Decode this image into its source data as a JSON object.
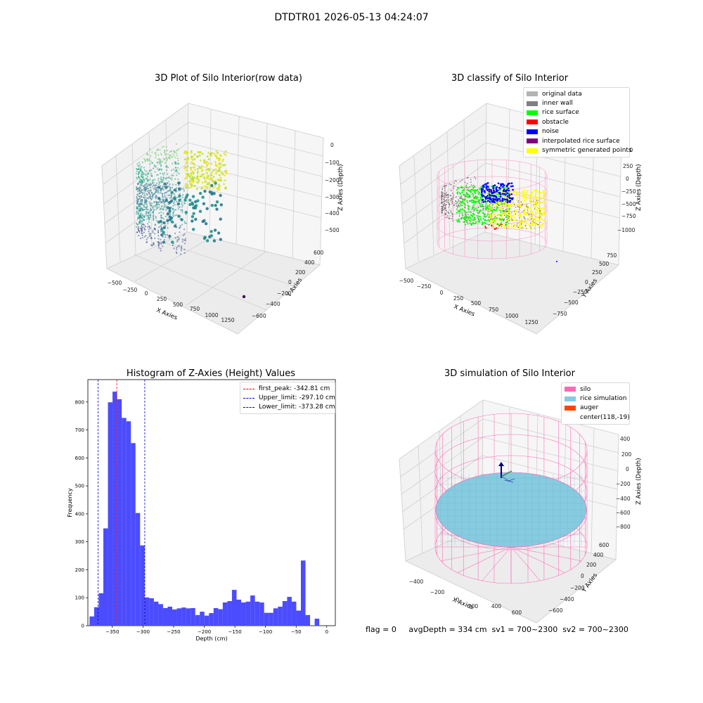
{
  "suptitle": "DTDTR01 2026-05-13 04:24:07",
  "footer": "flag = 0     avgDepth = 334 cm  sv1 = 700~2300  sv2 = 700~2300",
  "colors": {
    "hist_bar": "#4c4cff",
    "peak_line": "#ff0000",
    "limit_line": "#0000cc",
    "silo_wire": "#ff69b4",
    "rice_sim": "#87cbe0"
  },
  "chart_data": [
    {
      "type": "scatter",
      "title": "3D Plot of Silo Interior(row data)",
      "xlabel": "X Axies",
      "ylabel": "Y Axies",
      "zlabel": "Z Axies (Depth)",
      "x_ticks": [
        "−500",
        "−250",
        "0",
        "250",
        "500",
        "750",
        "1000",
        "1250"
      ],
      "y_ticks": [
        "−600",
        "−400",
        "−200",
        "0",
        "200",
        "400",
        "600"
      ],
      "z_ticks": [
        "−500",
        "−400",
        "−300",
        "−200",
        "−100",
        "0"
      ],
      "colormap": "viridis"
    },
    {
      "type": "scatter",
      "title": "3D classify of Silo Interior",
      "xlabel": "X Axies",
      "ylabel": "Y Axies",
      "zlabel": "Z Axies (Depth)",
      "x_ticks": [
        "−500",
        "−250",
        "0",
        "250",
        "500",
        "750",
        "1000",
        "1250"
      ],
      "y_ticks": [
        "−750",
        "−500",
        "−250",
        "0",
        "250",
        "500",
        "750"
      ],
      "z_ticks": [
        "−1000",
        "−750",
        "−500",
        "−250",
        "0",
        "250",
        "500"
      ],
      "legend": [
        {
          "label": "original data",
          "color": "#b3b3b3"
        },
        {
          "label": "inner wall",
          "color": "#808080"
        },
        {
          "label": "rice surface",
          "color": "#00ff00"
        },
        {
          "label": "obstacle",
          "color": "#ff0000"
        },
        {
          "label": "noise",
          "color": "#0000ff"
        },
        {
          "label": "interpolated rice surface",
          "color": "#800080"
        },
        {
          "label": "symmetric generated points",
          "color": "#ffff00"
        }
      ]
    },
    {
      "type": "bar",
      "title": "Histogram of Z-Axies (Height) Values",
      "xlabel": "Depth (cm)",
      "ylabel": "Frequency",
      "xlim": [
        -390,
        14
      ],
      "ylim": [
        0,
        880
      ],
      "x_ticks": [
        "−350",
        "−300",
        "−250",
        "−200",
        "−150",
        "−100",
        "−50",
        "0"
      ],
      "y_ticks": [
        "0",
        "100",
        "200",
        "300",
        "400",
        "500",
        "600",
        "700",
        "800"
      ],
      "bin_width": 7.5,
      "bins": [
        {
          "x": -383.5,
          "y": 33
        },
        {
          "x": -376.0,
          "y": 66
        },
        {
          "x": -368.5,
          "y": 116
        },
        {
          "x": -361.0,
          "y": 348
        },
        {
          "x": -353.5,
          "y": 799
        },
        {
          "x": -346.0,
          "y": 837
        },
        {
          "x": -338.5,
          "y": 810
        },
        {
          "x": -331.0,
          "y": 743
        },
        {
          "x": -323.5,
          "y": 731
        },
        {
          "x": -316.0,
          "y": 653
        },
        {
          "x": -308.5,
          "y": 403
        },
        {
          "x": -301.0,
          "y": 287
        },
        {
          "x": -293.5,
          "y": 101
        },
        {
          "x": -286.0,
          "y": 98
        },
        {
          "x": -278.5,
          "y": 86
        },
        {
          "x": -271.0,
          "y": 77
        },
        {
          "x": -263.5,
          "y": 63
        },
        {
          "x": -256.0,
          "y": 68
        },
        {
          "x": -248.5,
          "y": 58
        },
        {
          "x": -241.0,
          "y": 62
        },
        {
          "x": -233.5,
          "y": 65
        },
        {
          "x": -226.0,
          "y": 62
        },
        {
          "x": -218.5,
          "y": 63
        },
        {
          "x": -211.0,
          "y": 38
        },
        {
          "x": -203.5,
          "y": 50
        },
        {
          "x": -196.0,
          "y": 36
        },
        {
          "x": -188.5,
          "y": 45
        },
        {
          "x": -181.0,
          "y": 63
        },
        {
          "x": -173.5,
          "y": 59
        },
        {
          "x": -166.0,
          "y": 83
        },
        {
          "x": -158.5,
          "y": 88
        },
        {
          "x": -151.0,
          "y": 128
        },
        {
          "x": -143.5,
          "y": 93
        },
        {
          "x": -136.0,
          "y": 83
        },
        {
          "x": -128.5,
          "y": 86
        },
        {
          "x": -121.0,
          "y": 108
        },
        {
          "x": -113.5,
          "y": 86
        },
        {
          "x": -106.0,
          "y": 83
        },
        {
          "x": -98.5,
          "y": 46
        },
        {
          "x": -91.0,
          "y": 46
        },
        {
          "x": -83.5,
          "y": 62
        },
        {
          "x": -76.0,
          "y": 68
        },
        {
          "x": -68.5,
          "y": 88
        },
        {
          "x": -61.0,
          "y": 103
        },
        {
          "x": -53.5,
          "y": 86
        },
        {
          "x": -46.0,
          "y": 54
        },
        {
          "x": -38.5,
          "y": 233
        },
        {
          "x": -31.0,
          "y": 38
        },
        {
          "x": -16.0,
          "y": 25
        }
      ],
      "vlines": [
        {
          "x": -342.81,
          "label": "first_peak: -342.81 cm",
          "color": "#ff0000"
        },
        {
          "x": -297.1,
          "label": "Upper_limit: -297.10 cm",
          "color": "#0000cc"
        },
        {
          "x": -373.28,
          "label": "Lower_limit: -373.28 cm",
          "color": "#0000cc"
        }
      ],
      "legend_position": "upper right"
    },
    {
      "type": "other",
      "title": "3D simulation of Silo Interior",
      "xlabel": "X Axies",
      "ylabel": "Y Axies",
      "zlabel": "Z Axies (Depth)",
      "x_ticks": [
        "−400",
        "−200",
        "0",
        "200",
        "400",
        "600"
      ],
      "y_ticks": [
        "−600",
        "−400",
        "−200",
        "0",
        "200",
        "400",
        "600"
      ],
      "z_ticks": [
        "−800",
        "−600",
        "−400",
        "−200",
        "0",
        "200",
        "400"
      ],
      "legend": [
        {
          "label": "silo",
          "color": "#ff69b4"
        },
        {
          "label": "rice simulation",
          "color": "#87cbe0"
        },
        {
          "label": "auger",
          "color": "#ff4500"
        },
        {
          "label": "center(118,-19)",
          "color": ""
        }
      ]
    }
  ]
}
